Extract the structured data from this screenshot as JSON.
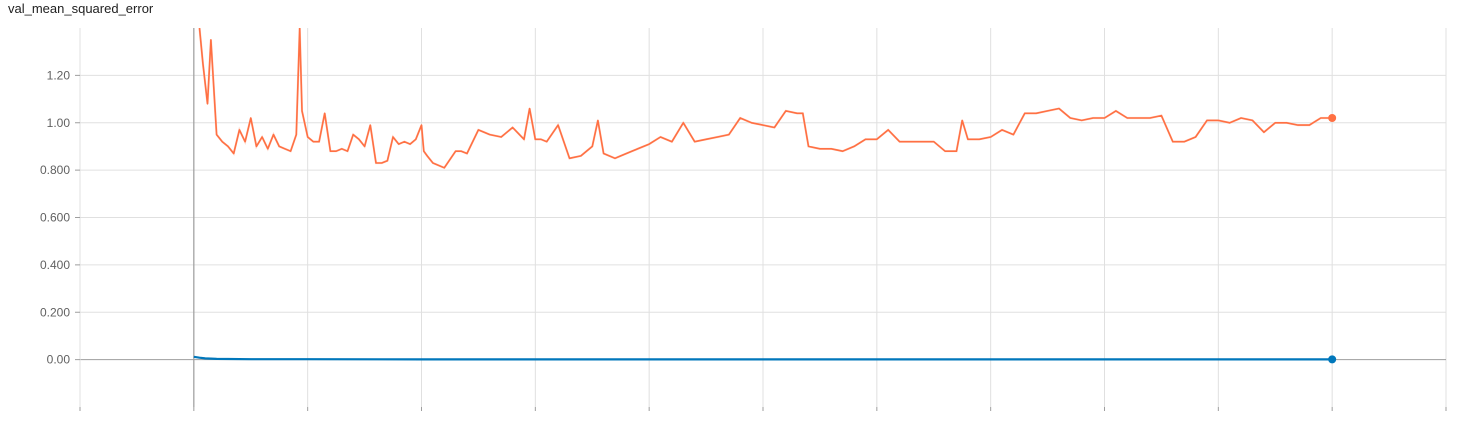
{
  "card": {
    "title": "val_mean_squared_error"
  },
  "chart_data": {
    "type": "line",
    "title": "val_mean_squared_error",
    "xlabel": "",
    "ylabel": "",
    "xlim": [
      -1,
      11
    ],
    "ylim": [
      -0.2,
      1.4
    ],
    "yticks": [
      0,
      0.2,
      0.4,
      0.6,
      0.8,
      1.0,
      1.2
    ],
    "ytick_labels": [
      "0.00",
      "0.200",
      "0.400",
      "0.600",
      "0.800",
      "1.00",
      "1.20"
    ],
    "xticks": [
      -1,
      0,
      1,
      2,
      3,
      4,
      5,
      6,
      7,
      8,
      9,
      10,
      11
    ],
    "grid": true,
    "legend": "none",
    "series": [
      {
        "color": "#ff7043",
        "raw_color": "#ffccbc",
        "smoothed": true,
        "x": [
          0.05,
          0.08,
          0.12,
          0.15,
          0.2,
          0.25,
          0.3,
          0.35,
          0.4,
          0.45,
          0.5,
          0.55,
          0.6,
          0.65,
          0.7,
          0.75,
          0.8,
          0.85,
          0.9,
          0.93,
          0.95,
          1.0,
          1.05,
          1.1,
          1.15,
          1.2,
          1.25,
          1.3,
          1.35,
          1.4,
          1.45,
          1.5,
          1.55,
          1.6,
          1.65,
          1.7,
          1.75,
          1.8,
          1.85,
          1.9,
          1.95,
          2.0,
          2.02,
          2.05,
          2.1,
          2.2,
          2.3,
          2.35,
          2.4,
          2.5,
          2.55,
          2.6,
          2.7,
          2.8,
          2.9,
          2.95,
          3.0,
          3.05,
          3.1,
          3.2,
          3.3,
          3.4,
          3.5,
          3.55,
          3.6,
          3.7,
          3.75,
          3.8,
          3.9,
          4.0,
          4.1,
          4.2,
          4.3,
          4.4,
          4.5,
          4.6,
          4.7,
          4.8,
          4.9,
          5.0,
          5.1,
          5.2,
          5.3,
          5.35,
          5.4,
          5.5,
          5.6,
          5.7,
          5.8,
          5.9,
          6.0,
          6.1,
          6.2,
          6.3,
          6.35,
          6.4,
          6.5,
          6.6,
          6.7,
          6.75,
          6.8,
          6.9,
          7.0,
          7.1,
          7.2,
          7.3,
          7.4,
          7.5,
          7.6,
          7.7,
          7.8,
          7.9,
          8.0,
          8.1,
          8.2,
          8.3,
          8.4,
          8.5,
          8.6,
          8.7,
          8.8,
          8.9,
          9.0,
          9.1,
          9.2,
          9.3,
          9.4,
          9.5,
          9.6,
          9.7,
          9.8,
          9.9,
          10.0
        ],
        "y": [
          1.4,
          1.25,
          1.08,
          1.35,
          0.95,
          0.92,
          0.9,
          0.87,
          0.97,
          0.92,
          1.02,
          0.9,
          0.94,
          0.89,
          0.95,
          0.9,
          0.89,
          0.88,
          0.95,
          1.4,
          1.05,
          0.94,
          0.92,
          0.92,
          1.04,
          0.88,
          0.88,
          0.89,
          0.88,
          0.95,
          0.93,
          0.9,
          0.99,
          0.83,
          0.83,
          0.84,
          0.94,
          0.91,
          0.92,
          0.91,
          0.93,
          0.99,
          0.88,
          0.86,
          0.83,
          0.81,
          0.88,
          0.88,
          0.87,
          0.97,
          0.96,
          0.95,
          0.94,
          0.98,
          0.93,
          1.06,
          0.93,
          0.93,
          0.92,
          0.99,
          0.85,
          0.86,
          0.9,
          1.01,
          0.87,
          0.85,
          0.86,
          0.87,
          0.89,
          0.91,
          0.94,
          0.92,
          1.0,
          0.92,
          0.93,
          0.94,
          0.95,
          1.02,
          1.0,
          0.99,
          0.98,
          1.05,
          1.04,
          1.04,
          0.9,
          0.89,
          0.89,
          0.88,
          0.9,
          0.93,
          0.93,
          0.97,
          0.92,
          0.92,
          0.92,
          0.92,
          0.92,
          0.88,
          0.88,
          1.01,
          0.93,
          0.93,
          0.94,
          0.97,
          0.95,
          1.04,
          1.04,
          1.05,
          1.06,
          1.02,
          1.01,
          1.02,
          1.02,
          1.05,
          1.02,
          1.02,
          1.02,
          1.03,
          0.92,
          0.92,
          0.94,
          1.01,
          1.01,
          1.0,
          1.02,
          1.01,
          0.96,
          1.0,
          1.0,
          0.99,
          0.99,
          1.02,
          1.02
        ]
      },
      {
        "color": "#0077bb",
        "raw_color": "#0077bb",
        "smoothed": false,
        "x": [
          0.0,
          0.05,
          0.1,
          0.2,
          0.5,
          1.0,
          2.0,
          3.0,
          4.0,
          5.0,
          6.0,
          7.0,
          8.0,
          9.0,
          10.0
        ],
        "y": [
          0.012,
          0.008,
          0.005,
          0.003,
          0.002,
          0.002,
          0.001,
          0.001,
          0.001,
          0.001,
          0.001,
          0.001,
          0.001,
          0.001,
          0.001
        ]
      }
    ]
  }
}
